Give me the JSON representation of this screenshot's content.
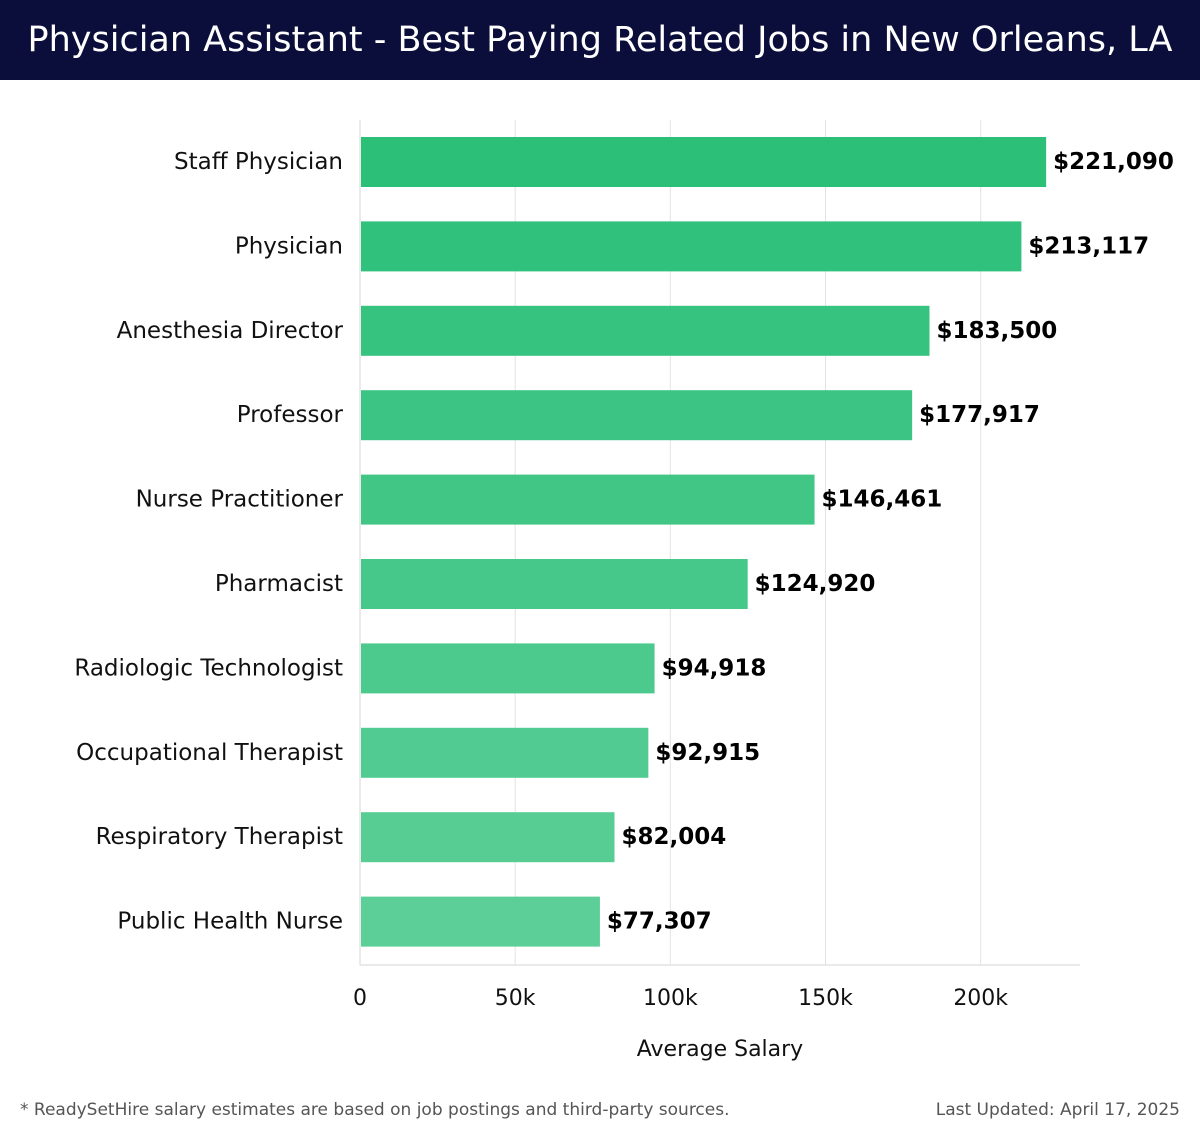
{
  "header": {
    "title": "Physician Assistant - Best Paying Related Jobs in New Orleans, LA"
  },
  "footer": {
    "note": "* ReadySetHire salary estimates are based on job postings and third-party sources.",
    "updated": "Last Updated: April 17, 2025"
  },
  "colors": {
    "header_bg": "#0b0e3a",
    "bar_dark": "#2bbf78",
    "bar_light": "#5ccf98"
  },
  "chart_data": {
    "type": "bar",
    "orientation": "horizontal",
    "categories": [
      "Staff Physician",
      "Physician",
      "Anesthesia Director",
      "Professor",
      "Nurse Practitioner",
      "Pharmacist",
      "Radiologic Technologist",
      "Occupational Therapist",
      "Respiratory Therapist",
      "Public Health Nurse"
    ],
    "values": [
      221090,
      213117,
      183500,
      177917,
      146461,
      124920,
      94918,
      92915,
      82004,
      77307
    ],
    "value_labels": [
      "$221,090",
      "$213,117",
      "$183,500",
      "$177,917",
      "$146,461",
      "$124,920",
      "$94,918",
      "$92,915",
      "$82,004",
      "$77,307"
    ],
    "xlabel": "Average Salary",
    "ylabel": "",
    "xlim": [
      0,
      232000
    ],
    "x_ticks": [
      0,
      50000,
      100000,
      150000,
      200000
    ],
    "x_tick_labels": [
      "0",
      "50k",
      "100k",
      "150k",
      "200k"
    ],
    "grid": true
  }
}
